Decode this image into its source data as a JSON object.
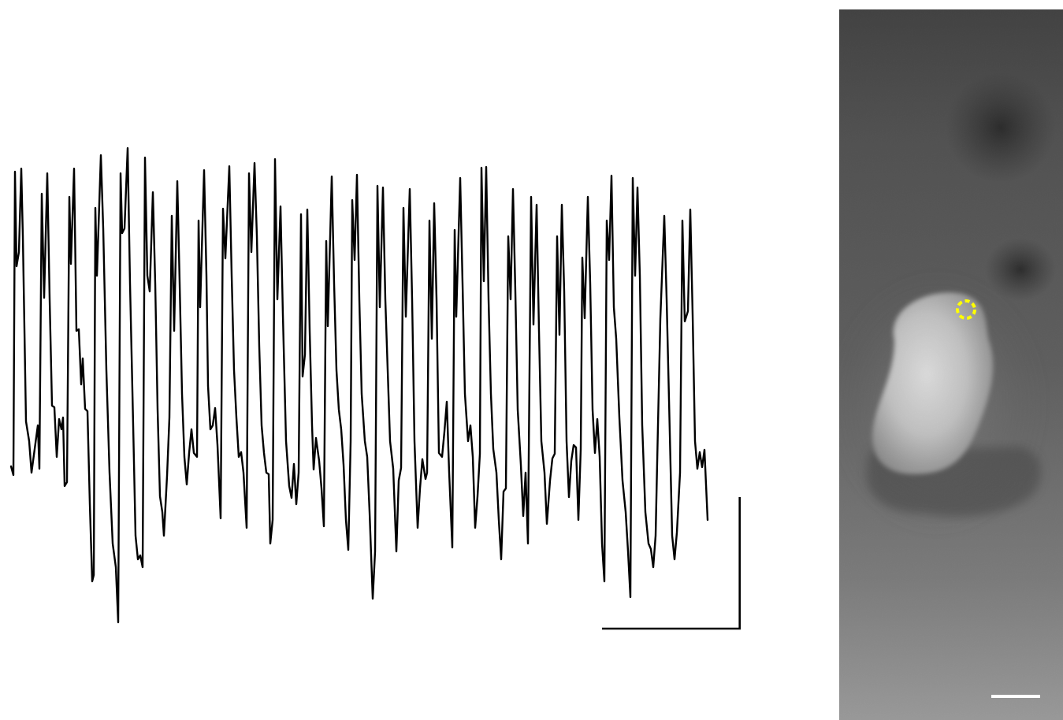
{
  "figure": {
    "trace": {
      "stroke_color": "#000000",
      "scale_bar_color": "#000000"
    },
    "micrograph": {
      "roi_color": "#ffff00",
      "scale_bar_color": "#ffffff",
      "background_tone": "#5a5a5a",
      "cell_tone": "#d8d8d8"
    }
  }
}
